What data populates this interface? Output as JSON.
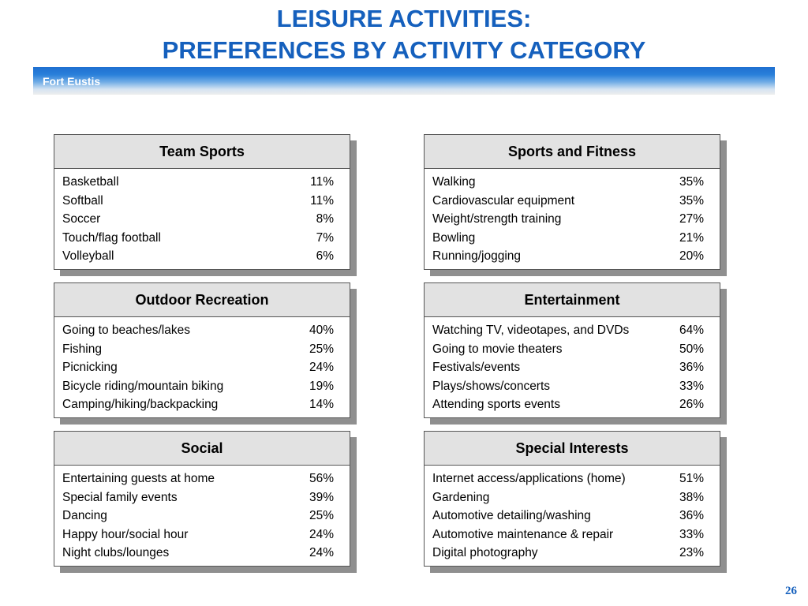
{
  "title": {
    "line1": "LEISURE ACTIVITIES:",
    "line2": "PREFERENCES BY ACTIVITY CATEGORY"
  },
  "banner": {
    "label": "Fort Eustis"
  },
  "cards": [
    {
      "title": "Team Sports",
      "rows": [
        {
          "label": "Basketball",
          "value": "11%"
        },
        {
          "label": "Softball",
          "value": "11%"
        },
        {
          "label": "Soccer",
          "value": "8%"
        },
        {
          "label": "Touch/flag football",
          "value": "7%"
        },
        {
          "label": "Volleyball",
          "value": "6%"
        }
      ]
    },
    {
      "title": "Sports and Fitness",
      "rows": [
        {
          "label": "Walking",
          "value": "35%"
        },
        {
          "label": "Cardiovascular equipment",
          "value": "35%"
        },
        {
          "label": "Weight/strength training",
          "value": "27%"
        },
        {
          "label": "Bowling",
          "value": "21%"
        },
        {
          "label": "Running/jogging",
          "value": "20%"
        }
      ]
    },
    {
      "title": "Outdoor Recreation",
      "rows": [
        {
          "label": "Going to beaches/lakes",
          "value": "40%"
        },
        {
          "label": "Fishing",
          "value": "25%"
        },
        {
          "label": "Picnicking",
          "value": "24%"
        },
        {
          "label": "Bicycle riding/mountain biking",
          "value": "19%"
        },
        {
          "label": "Camping/hiking/backpacking",
          "value": "14%"
        }
      ]
    },
    {
      "title": "Entertainment",
      "rows": [
        {
          "label": "Watching TV, videotapes, and DVDs",
          "value": "64%"
        },
        {
          "label": "Going to movie theaters",
          "value": "50%"
        },
        {
          "label": "Festivals/events",
          "value": "36%"
        },
        {
          "label": "Plays/shows/concerts",
          "value": "33%"
        },
        {
          "label": "Attending sports events",
          "value": "26%"
        }
      ]
    },
    {
      "title": "Social",
      "rows": [
        {
          "label": "Entertaining guests at home",
          "value": "56%"
        },
        {
          "label": "Special family events",
          "value": "39%"
        },
        {
          "label": "Dancing",
          "value": "25%"
        },
        {
          "label": "Happy hour/social hour",
          "value": "24%"
        },
        {
          "label": "Night clubs/lounges",
          "value": "24%"
        }
      ]
    },
    {
      "title": "Special Interests",
      "rows": [
        {
          "label": "Internet access/applications (home)",
          "value": "51%"
        },
        {
          "label": "Gardening",
          "value": "38%"
        },
        {
          "label": "Automotive detailing/washing",
          "value": "36%"
        },
        {
          "label": "Automotive maintenance & repair",
          "value": "33%"
        },
        {
          "label": "Digital photography",
          "value": "23%"
        }
      ]
    }
  ],
  "page_number": "26",
  "colors": {
    "title": "#1560bd",
    "banner_top": "#1e6fd0",
    "card_header_bg": "#e2e2e2",
    "card_shadow": "#8f8f8f"
  }
}
